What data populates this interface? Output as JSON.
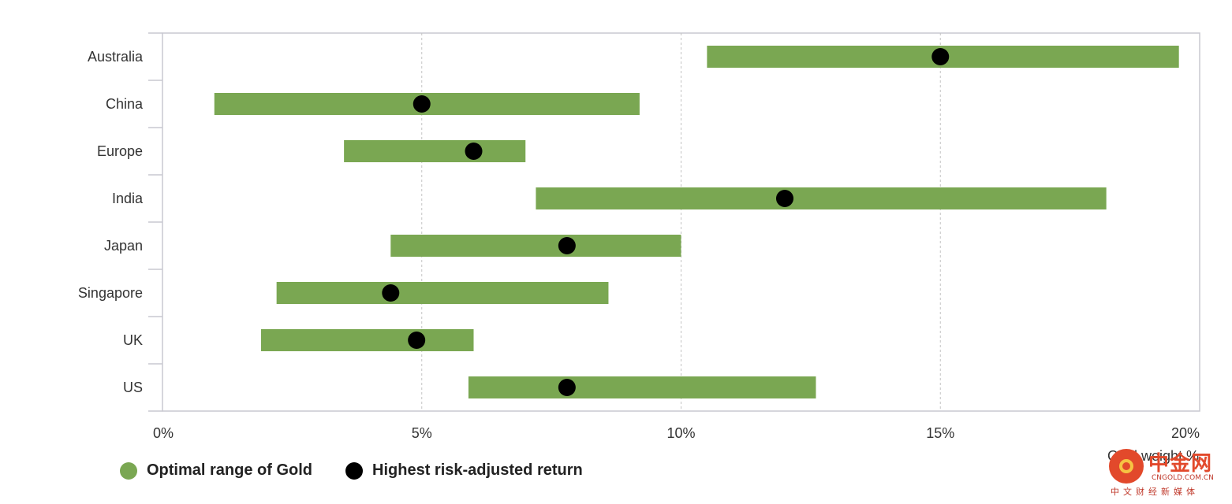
{
  "chart_data": {
    "type": "range-dot",
    "categories": [
      "Australia",
      "China",
      "Europe",
      "India",
      "Japan",
      "Singapore",
      "UK",
      "US"
    ],
    "series": [
      {
        "name": "Optimal range of Gold",
        "type": "range-bar",
        "color": "#7aa752",
        "ranges": [
          [
            10.5,
            19.6
          ],
          [
            1.0,
            9.2
          ],
          [
            3.5,
            7.0
          ],
          [
            7.2,
            18.2
          ],
          [
            4.4,
            10.0
          ],
          [
            2.2,
            8.6
          ],
          [
            1.9,
            6.0
          ],
          [
            5.9,
            12.6
          ]
        ]
      },
      {
        "name": "Highest risk-adjusted return",
        "type": "dot",
        "color": "#000000",
        "values": [
          15.0,
          5.0,
          6.0,
          12.0,
          7.8,
          4.4,
          4.9,
          7.8
        ]
      }
    ],
    "xlim": [
      0,
      20
    ],
    "xticks": [
      0,
      5,
      10,
      15,
      20
    ],
    "xtick_labels": [
      "0%",
      "5%",
      "10%",
      "15%",
      "20%"
    ],
    "xlabel": "Gold weight %",
    "ylabel": "",
    "title": "",
    "grid": "vertical dashed",
    "legend_position": "bottom-left"
  },
  "legend": {
    "range_label": "Optimal range of Gold",
    "dot_label": "Highest risk-adjusted return"
  },
  "watermark": {
    "name_cn": "中金网",
    "url": "CNGOLD.COM.CN",
    "tagline": "中文财经新媒体"
  }
}
